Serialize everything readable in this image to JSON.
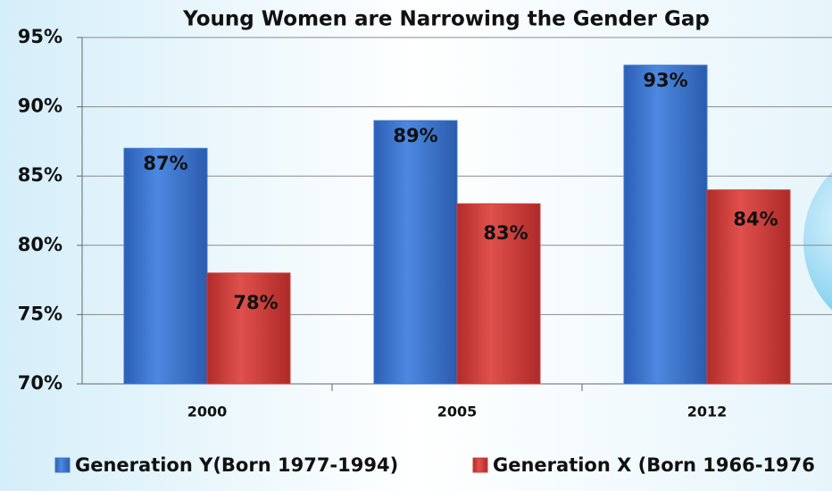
{
  "chart_data": {
    "type": "bar",
    "title": "Young Women are Narrowing the Gender Gap",
    "categories": [
      "2000",
      "2005",
      "2012"
    ],
    "series": [
      {
        "name": "Generation Y(Born 1977-1994)",
        "color": "#3a74d0",
        "values": [
          87,
          89,
          93
        ],
        "value_labels": [
          "87%",
          "89%",
          "93%"
        ]
      },
      {
        "name": "Generation X (Born 1966-1976",
        "color": "#d43d3a",
        "values": [
          78,
          83,
          84
        ],
        "value_labels": [
          "78%",
          "83%",
          "84%"
        ]
      }
    ],
    "ylim": [
      70,
      95
    ],
    "yticks": [
      {
        "value": 70,
        "label": "70%"
      },
      {
        "value": 75,
        "label": "75%"
      },
      {
        "value": 80,
        "label": "80%"
      },
      {
        "value": 85,
        "label": "85%"
      },
      {
        "value": 90,
        "label": "90%"
      },
      {
        "value": 95,
        "label": "95%"
      }
    ],
    "grid": true,
    "legend": "bottom"
  }
}
